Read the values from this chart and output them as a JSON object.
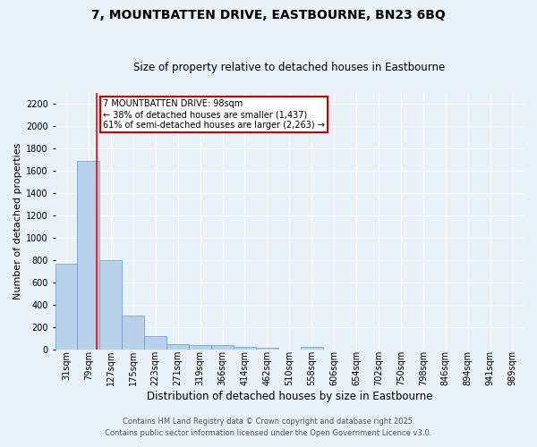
{
  "title": "7, MOUNTBATTEN DRIVE, EASTBOURNE, BN23 6BQ",
  "subtitle": "Size of property relative to detached houses in Eastbourne",
  "xlabel": "Distribution of detached houses by size in Eastbourne",
  "ylabel": "Number of detached properties",
  "annotation_line1": "7 MOUNTBATTEN DRIVE: 98sqm",
  "annotation_line2": "← 38% of detached houses are smaller (1,437)",
  "annotation_line3": "61% of semi-detached houses are larger (2,263) →",
  "footer1": "Contains HM Land Registry data © Crown copyright and database right 2025.",
  "footer2": "Contains public sector information licensed under the Open Government Licence v3.0.",
  "bar_labels": [
    "31sqm",
    "79sqm",
    "127sqm",
    "175sqm",
    "223sqm",
    "271sqm",
    "319sqm",
    "366sqm",
    "414sqm",
    "462sqm",
    "510sqm",
    "558sqm",
    "606sqm",
    "654sqm",
    "702sqm",
    "750sqm",
    "798sqm",
    "846sqm",
    "894sqm",
    "941sqm",
    "989sqm"
  ],
  "bar_values": [
    770,
    1690,
    800,
    300,
    115,
    42,
    35,
    35,
    20,
    15,
    0,
    20,
    0,
    0,
    0,
    0,
    0,
    0,
    0,
    0,
    0
  ],
  "bar_color": "#b8d0ea",
  "bar_edge_color": "#6699cc",
  "red_line_x": 1.38,
  "ylim": [
    0,
    2300
  ],
  "yticks": [
    0,
    200,
    400,
    600,
    800,
    1000,
    1200,
    1400,
    1600,
    1800,
    2000,
    2200
  ],
  "bg_color": "#e8f0f8",
  "annotation_box_color": "#ffffff",
  "annotation_box_edge": "#cc0000",
  "title_fontsize": 10,
  "subtitle_fontsize": 8.5,
  "ylabel_fontsize": 8,
  "xlabel_fontsize": 8.5,
  "tick_fontsize": 7,
  "footer_fontsize": 6
}
